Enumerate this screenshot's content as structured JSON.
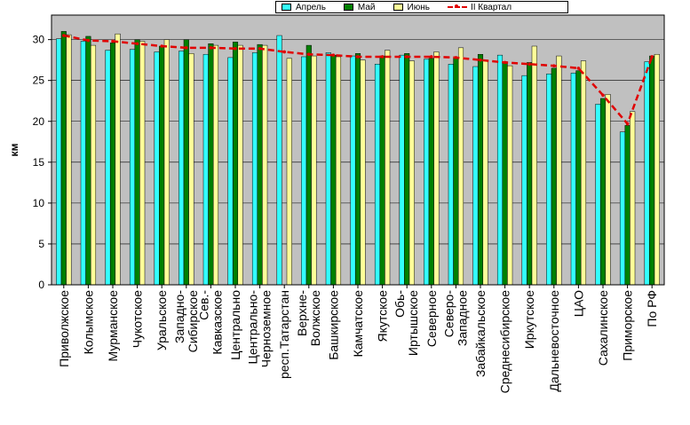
{
  "chart_data": {
    "type": "bar",
    "ylabel": "км",
    "xlabel": "",
    "ylim": [
      0,
      33
    ],
    "yticks": [
      0,
      5,
      10,
      15,
      20,
      25,
      30
    ],
    "grid": "horizontal",
    "legend_position": "top",
    "categories": [
      [
        "Приволжское"
      ],
      [
        "Колымское"
      ],
      [
        "Мурманское"
      ],
      [
        "Чукотское"
      ],
      [
        "Уральское"
      ],
      [
        "Западно-",
        "Сибирское"
      ],
      [
        "Сев.-",
        "Кавказское"
      ],
      [
        "Центрально"
      ],
      [
        "Центрально-",
        "Черноземное"
      ],
      [
        "респ.Татарстан"
      ],
      [
        "Верхне-",
        "Волжское"
      ],
      [
        "Башкирское"
      ],
      [
        "Камчатское"
      ],
      [
        "Якутское"
      ],
      [
        "Обь-",
        "Иртышское"
      ],
      [
        "Северное"
      ],
      [
        "Северо-",
        "Западное"
      ],
      [
        "Забайкальское"
      ],
      [
        "Среднесибирское"
      ],
      [
        "Иркутское"
      ],
      [
        "Дальневосточное"
      ],
      [
        "ЦАО"
      ],
      [
        "Сахалинское"
      ],
      [
        "Приморское"
      ],
      [
        "По РФ"
      ]
    ],
    "series": [
      {
        "name": "Апрель",
        "color": "#33ffff",
        "values": [
          30.1,
          29.8,
          28.7,
          28.8,
          28.5,
          28.6,
          28.2,
          27.8,
          28.4,
          30.5,
          27.9,
          28.4,
          28.0,
          27.0,
          28.1,
          27.6,
          27.0,
          26.7,
          28.1,
          25.6,
          25.8,
          25.9,
          22.1,
          18.7,
          27.3
        ]
      },
      {
        "name": "Май",
        "color": "#008000",
        "values": [
          31.0,
          30.4,
          29.6,
          30.0,
          29.2,
          30.0,
          29.5,
          29.7,
          29.4,
          0.0,
          29.3,
          28.1,
          28.3,
          28.0,
          28.3,
          27.7,
          27.8,
          28.2,
          27.3,
          27.2,
          26.5,
          26.2,
          22.8,
          19.5,
          28.0
        ]
      },
      {
        "name": "Июнь",
        "color": "#ffff99",
        "values": [
          30.6,
          29.3,
          30.7,
          29.8,
          30.0,
          28.3,
          29.3,
          29.3,
          29.3,
          27.7,
          28.0,
          27.9,
          27.5,
          28.7,
          27.4,
          28.5,
          29.0,
          27.5,
          26.8,
          29.2,
          28.0,
          27.4,
          23.3,
          21.2,
          28.2
        ]
      },
      {
        "name": "II Квартал",
        "color": "#e00000",
        "style": "dashed-line",
        "values": [
          30.5,
          29.9,
          29.8,
          29.5,
          29.2,
          29.0,
          29.0,
          28.9,
          28.9,
          28.5,
          28.2,
          28.1,
          27.9,
          27.9,
          27.9,
          27.9,
          27.8,
          27.5,
          27.2,
          27.0,
          26.8,
          26.5,
          23.2,
          19.7,
          27.9
        ]
      }
    ]
  }
}
